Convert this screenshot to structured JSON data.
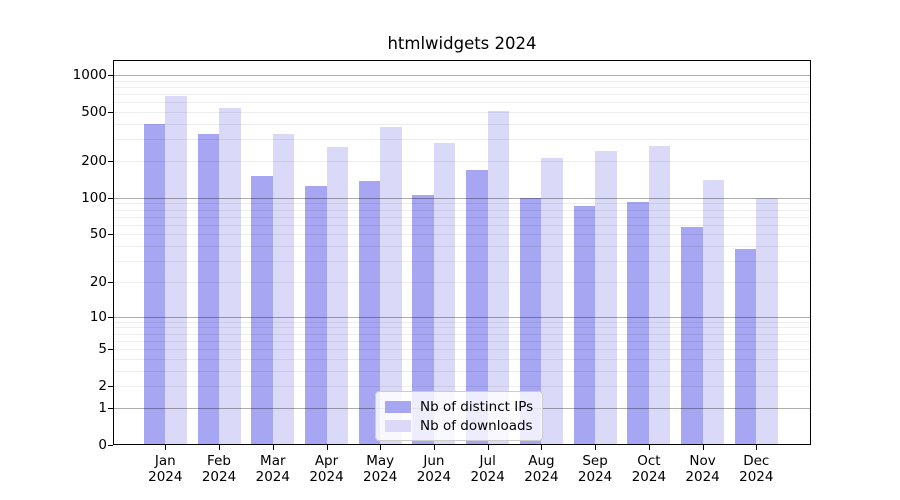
{
  "title": "htmlwidgets 2024",
  "chart_data": {
    "type": "bar",
    "title": "htmlwidgets 2024",
    "categories": [
      "Jan 2024",
      "Feb 2024",
      "Mar 2024",
      "Apr 2024",
      "May 2024",
      "Jun 2024",
      "Jul 2024",
      "Aug 2024",
      "Sep 2024",
      "Oct 2024",
      "Nov 2024",
      "Dec 2024"
    ],
    "series": [
      {
        "name": "Nb of distinct IPs",
        "color": "#a6a6f2",
        "values": [
          400,
          330,
          150,
          125,
          138,
          105,
          168,
          100,
          86,
          93,
          58,
          38
        ]
      },
      {
        "name": "Nb of downloads",
        "color": "#dadaf8",
        "values": [
          680,
          540,
          330,
          262,
          375,
          280,
          510,
          210,
          240,
          265,
          140,
          100
        ]
      }
    ],
    "xlabel": "",
    "ylabel": "",
    "y_scale": "log10(value+1)",
    "y_ticks": [
      1000,
      500,
      200,
      100,
      50,
      20,
      10,
      5,
      2,
      1,
      0
    ],
    "ylim": [
      0,
      1325
    ],
    "grid": {
      "horizontal": true,
      "minor_log_gridlines": true
    },
    "legend_position": "lower center"
  }
}
